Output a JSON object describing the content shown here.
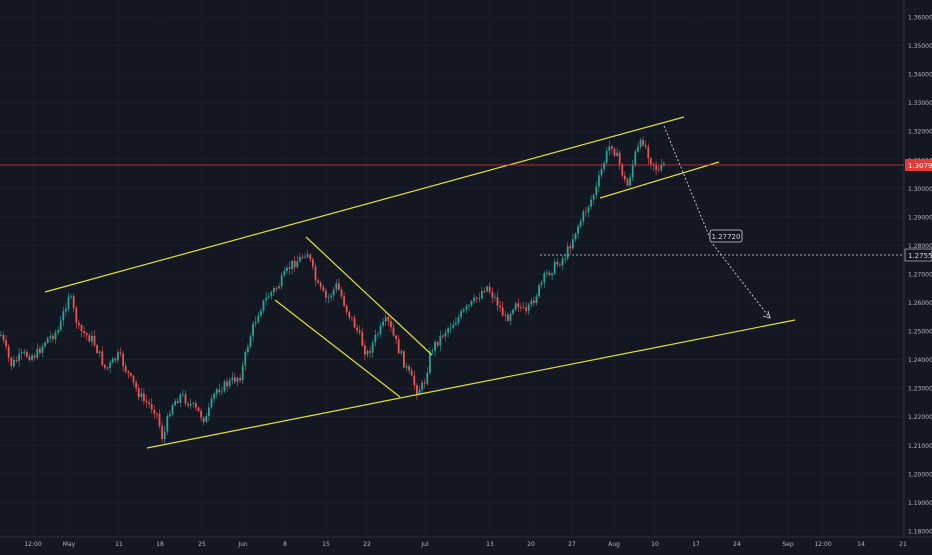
{
  "colors": {
    "background": "#131722",
    "grid": "#1f2330",
    "axis_text": "#b2b5be",
    "up_candle": "#26a69a",
    "down_candle": "#ef5350",
    "trendline": "#e6e02e",
    "price_line": "#e53935",
    "projection": "#d1d4dc"
  },
  "price_axis": {
    "labels": [
      "1.36000",
      "1.35000",
      "1.34000",
      "1.33000",
      "1.32000",
      "1.31000",
      "1.30000",
      "1.29000",
      "1.28000",
      "1.27000",
      "1.26000",
      "1.25000",
      "1.24000",
      "1.23000",
      "1.22000",
      "1.21000",
      "1.20000",
      "1.19000",
      "1.18000"
    ]
  },
  "time_axis": {
    "labels": [
      "12:00",
      "May",
      "11",
      "18",
      "25",
      "Jun",
      "8",
      "15",
      "22",
      "Jul",
      "13",
      "20",
      "27",
      "Aug",
      "10",
      "17",
      "24",
      "Sep",
      "12:00",
      "14",
      "21"
    ]
  },
  "current_price": {
    "label": "1.30792",
    "value": 1.30792
  },
  "dotted_level": {
    "label": "1.27555",
    "value": 1.27555
  },
  "target_callout": {
    "label": "1.27720",
    "value": 1.2772
  },
  "chart_data": {
    "type": "candlestick",
    "instrument_unit": "price",
    "ylim": [
      1.175,
      1.365
    ],
    "grid": true,
    "last_close": 1.30792,
    "visible_range": {
      "low_approx": 1.207,
      "high_approx": 1.3195
    },
    "drawings": [
      "ascending channel upper line",
      "ascending channel lower line",
      "descending channel (June) upper line",
      "descending channel (June) lower line",
      "rising wedge/flag (Aug) lower line",
      "dotted projection path to target"
    ]
  }
}
